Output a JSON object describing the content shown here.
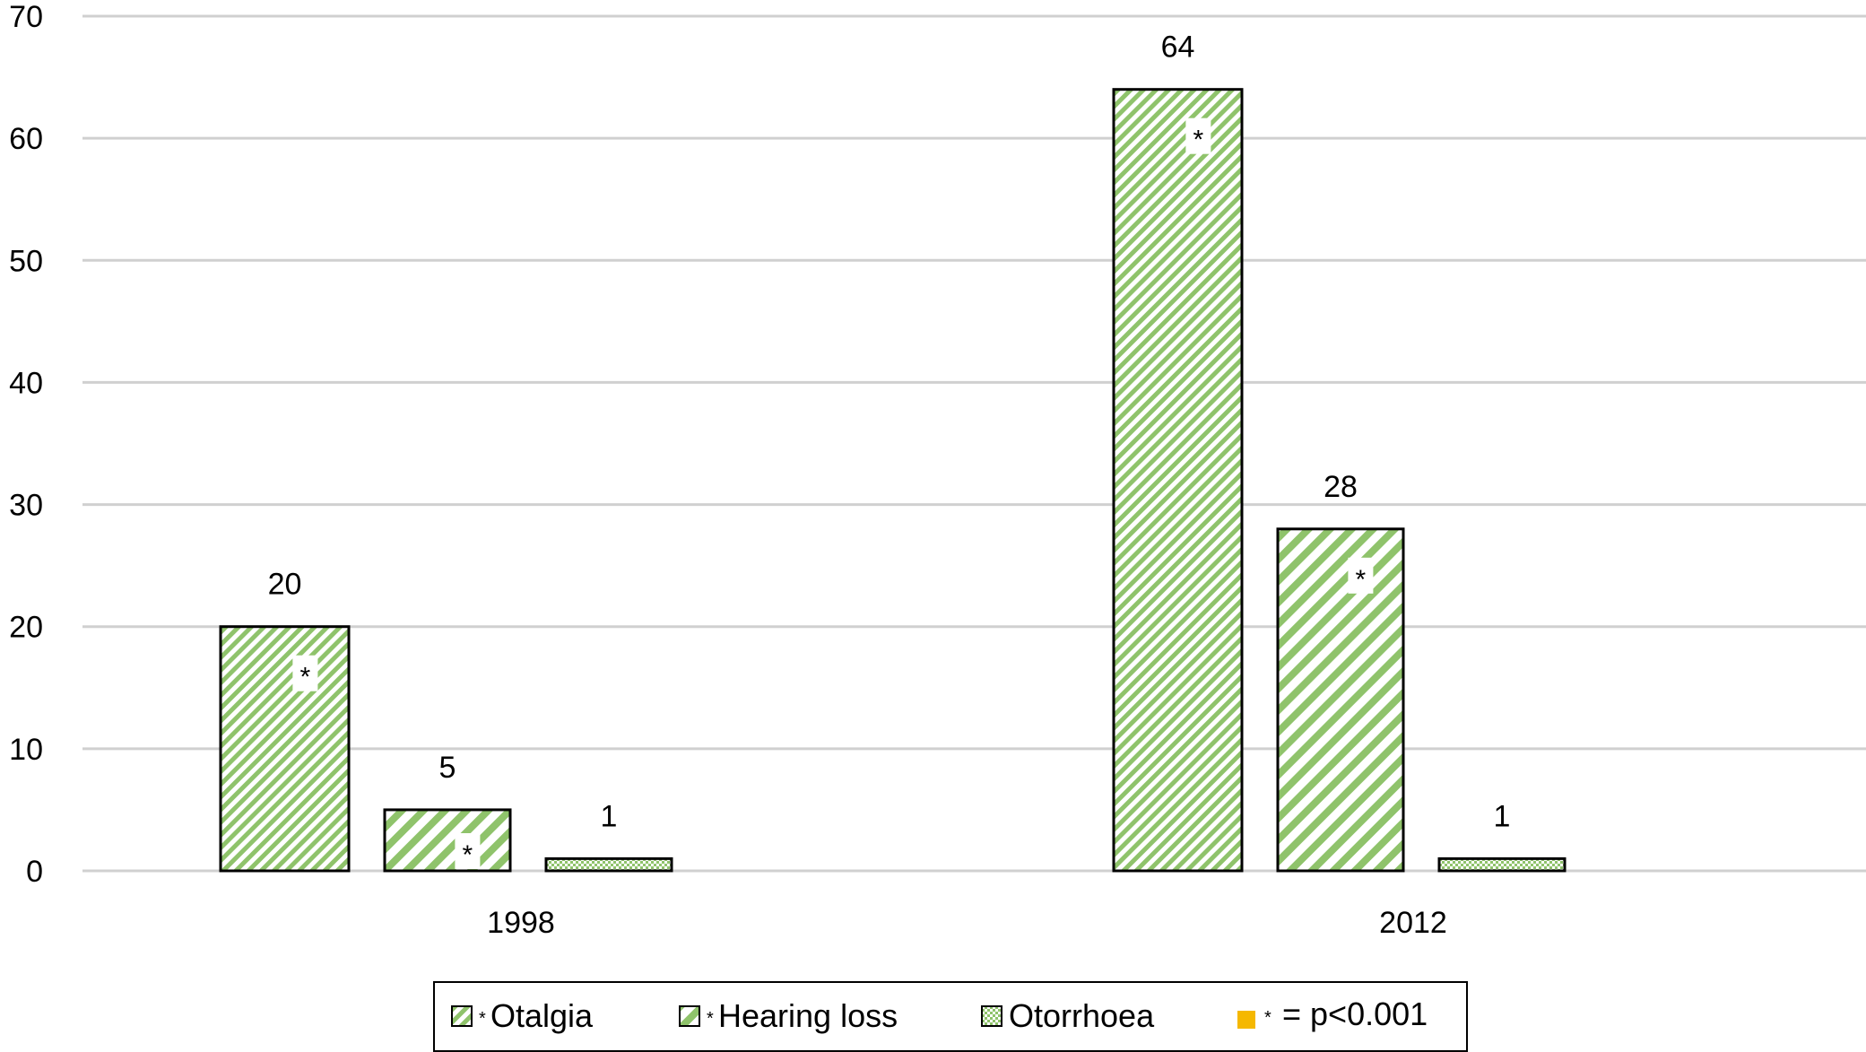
{
  "chart_data": {
    "type": "bar",
    "title": "",
    "xlabel": "",
    "ylabel": "",
    "categories": [
      "1998",
      "2012"
    ],
    "ylim": [
      0,
      70
    ],
    "yticks": [
      "0",
      "10",
      "20",
      "30",
      "40",
      "50",
      "60",
      "70"
    ],
    "grid": true,
    "legend_position": "bottom",
    "series": [
      {
        "name": "Otalgia",
        "legend_marker": "*",
        "values": [
          20,
          64
        ],
        "value_labels": [
          "20",
          "64"
        ],
        "significance": [
          "*",
          "*"
        ],
        "pattern": "dense-diagonal-stripes",
        "color": "#8fc36b"
      },
      {
        "name": "Hearing loss",
        "legend_marker": "*",
        "values": [
          5,
          28
        ],
        "value_labels": [
          "5",
          "28"
        ],
        "significance": [
          "*",
          "*"
        ],
        "pattern": "wide-diagonal-stripes",
        "color": "#8fc36b"
      },
      {
        "name": "Otorrhoea",
        "legend_marker": "",
        "values": [
          1,
          1
        ],
        "value_labels": [
          "1",
          "1"
        ],
        "significance": [
          "",
          ""
        ],
        "pattern": "dotted",
        "color": "#8fc36b"
      }
    ],
    "legend_note": {
      "marker": "*",
      "text": "= p<0.001",
      "color": "#f5b800"
    },
    "colors": {
      "grid": "#d0d0d0",
      "bar_outline": "#000000",
      "pattern_fill": "#8fc36b"
    }
  }
}
